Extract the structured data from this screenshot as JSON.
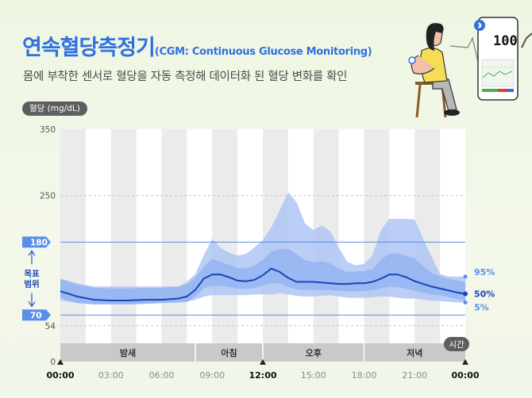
{
  "header": {
    "title_main": "연속혈당측정기",
    "title_sub": "(CGM: Continuous Glucose Monitoring)",
    "subtitle": "몸에 부착한 센서로 혈당을 자동 측정해 데이터화 된 혈당 변화를 확인"
  },
  "device": {
    "reading": "100",
    "icon": "bluetooth-icon"
  },
  "chart_data": {
    "type": "area",
    "ylabel": "혈당 (mg/dL)",
    "xlabel": "시간",
    "ylim": [
      0,
      350
    ],
    "xlim": [
      0,
      24
    ],
    "y_ticks": [
      "0",
      "54",
      "70",
      "180",
      "250",
      "350"
    ],
    "x_ticks": [
      {
        "value": 0,
        "label": "00:00",
        "major": true
      },
      {
        "value": 3,
        "label": "03:00",
        "major": false
      },
      {
        "value": 6,
        "label": "06:00",
        "major": false
      },
      {
        "value": 9,
        "label": "09:00",
        "major": false
      },
      {
        "value": 12,
        "label": "12:00",
        "major": true
      },
      {
        "value": 15,
        "label": "15:00",
        "major": false
      },
      {
        "value": 18,
        "label": "18:00",
        "major": false
      },
      {
        "value": 21,
        "label": "21:00",
        "major": false
      },
      {
        "value": 24,
        "label": "00:00",
        "major": true
      }
    ],
    "target_range": {
      "low": 70,
      "high": 180,
      "label": [
        "목표",
        "범위"
      ]
    },
    "periods": [
      {
        "label": "밤새",
        "start": 0,
        "end": 8
      },
      {
        "label": "아침",
        "start": 8,
        "end": 12
      },
      {
        "label": "오후",
        "start": 12,
        "end": 18
      },
      {
        "label": "저녁",
        "start": 18,
        "end": 24
      }
    ],
    "x": [
      0,
      1,
      2,
      3,
      4,
      5,
      6,
      7,
      7.5,
      8,
      8.5,
      9,
      9.5,
      10,
      10.5,
      11,
      11.5,
      12,
      12.5,
      13,
      13.5,
      14,
      14.5,
      15,
      15.5,
      16,
      16.5,
      17,
      17.5,
      18,
      18.5,
      19,
      19.5,
      20,
      20.5,
      21,
      21.5,
      22,
      22.5,
      23,
      23.5,
      24
    ],
    "series": [
      {
        "name": "95%",
        "values": [
          125,
          118,
          113,
          113,
          113,
          113,
          113,
          113,
          120,
          132,
          160,
          185,
          171,
          164,
          160,
          162,
          172,
          183,
          202,
          228,
          255,
          240,
          208,
          198,
          205,
          196,
          172,
          150,
          145,
          147,
          160,
          198,
          215,
          215,
          215,
          214,
          185,
          158,
          132,
          128,
          128,
          128
        ]
      },
      {
        "name": "50%",
        "values": [
          106,
          98,
          93,
          92,
          92,
          93,
          93,
          95,
          98,
          108,
          125,
          131,
          131,
          127,
          122,
          121,
          123,
          130,
          140,
          135,
          126,
          120,
          120,
          120,
          119,
          118,
          117,
          117,
          118,
          118,
          120,
          125,
          131,
          131,
          127,
          121,
          117,
          113,
          110,
          107,
          104,
          102
        ]
      },
      {
        "name": "5%",
        "values": [
          92,
          88,
          86,
          86,
          86,
          87,
          88,
          89,
          90,
          93,
          98,
          100,
          100,
          100,
          100,
          100,
          101,
          101,
          101,
          103,
          101,
          99,
          98,
          98,
          99,
          100,
          98,
          96,
          96,
          96,
          97,
          98,
          98,
          96,
          95,
          95,
          93,
          92,
          91,
          90,
          89,
          89
        ]
      }
    ]
  }
}
